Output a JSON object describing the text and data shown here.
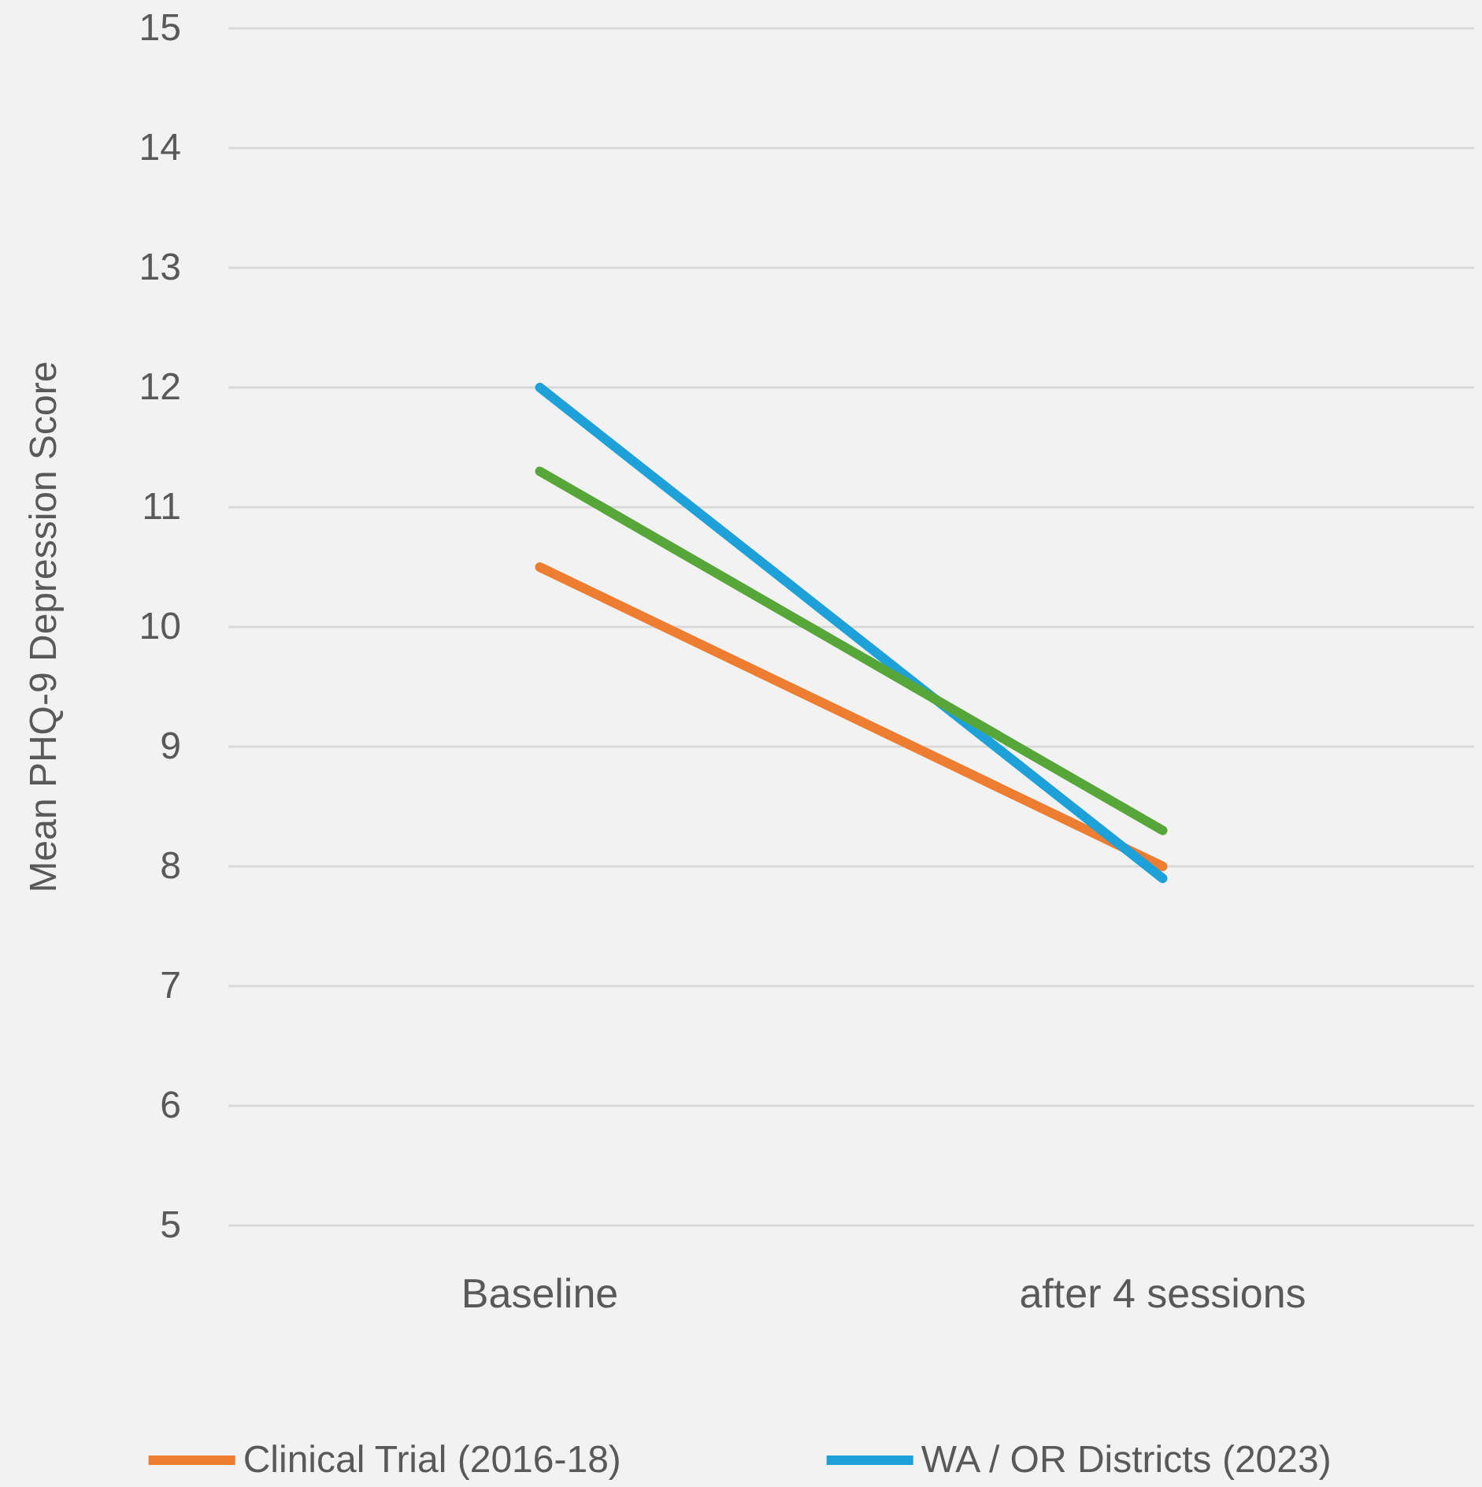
{
  "chart_data": {
    "type": "line",
    "ylabel": "Mean PHQ-9 Depression Score",
    "categories": [
      "Baseline",
      "after 4 sessions"
    ],
    "series": [
      {
        "name": "Clinical Trial (2016-18)",
        "color": "#ed7d31",
        "values": [
          10.5,
          8.0
        ]
      },
      {
        "name": "WA / OR Districts (2023)",
        "color": "#1ea1d8",
        "values": [
          12.0,
          7.9
        ]
      },
      {
        "color": "#56a63a",
        "values": [
          11.3,
          8.3
        ]
      }
    ],
    "ylim": [
      5,
      15
    ],
    "yticks": [
      5,
      6,
      7,
      8,
      9,
      10,
      11,
      12,
      13,
      14,
      15
    ],
    "grid": "y",
    "legend": "bottom",
    "marker": "none",
    "line_style": "solid"
  }
}
